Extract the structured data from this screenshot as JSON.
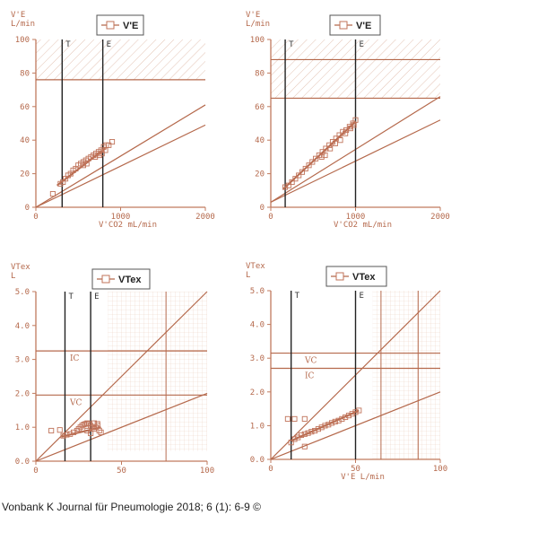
{
  "citation": "Vonbank K Journal für Pneumologie 2018; 6 (1): 6-9 ©",
  "colors": {
    "axis": "#c07a5e",
    "grid": "#e0b9a6",
    "line": "#b5694c",
    "marker": "#222222",
    "point": "#c0735a",
    "hatch": "#e3c3b4"
  },
  "chart_data": [
    {
      "type": "scatter",
      "panel": "top-left",
      "ylabel_lines": [
        "V'E",
        "L/min"
      ],
      "xlabel": "V'CO2  mL/min",
      "legend": "V'E",
      "xlim": [
        0,
        2000
      ],
      "ylim": [
        0,
        100
      ],
      "xticks": [
        0,
        1000,
        2000
      ],
      "xtick_labels": [
        "0",
        "1000",
        "2000"
      ],
      "yticks": [
        0,
        20,
        40,
        60,
        80,
        100
      ],
      "ytick_labels": [
        "0",
        "20",
        "40",
        "60",
        "80",
        "100"
      ],
      "markers": [
        {
          "label": "T",
          "x": 310
        },
        {
          "label": "E",
          "x": 790
        }
      ],
      "hlines": [
        {
          "y": 76,
          "label": ""
        }
      ],
      "hatched_band": [
        76,
        100
      ],
      "ref_lines": [
        {
          "x1": 0,
          "y1": 0,
          "x2": 2000,
          "y2": 61
        },
        {
          "x1": 0,
          "y1": 0,
          "x2": 2000,
          "y2": 49
        }
      ],
      "fit_line": [
        {
          "x": 250,
          "y": 13
        },
        {
          "x": 820,
          "y": 35
        }
      ],
      "series": [
        {
          "name": "V'E",
          "points": [
            [
              200,
              8
            ],
            [
              290,
              14
            ],
            [
              320,
              15
            ],
            [
              350,
              17
            ],
            [
              380,
              19
            ],
            [
              410,
              20
            ],
            [
              440,
              22
            ],
            [
              470,
              23
            ],
            [
              500,
              25
            ],
            [
              530,
              26
            ],
            [
              560,
              27
            ],
            [
              590,
              28
            ],
            [
              620,
              29
            ],
            [
              650,
              30
            ],
            [
              680,
              31
            ],
            [
              710,
              32
            ],
            [
              740,
              33
            ],
            [
              770,
              34
            ],
            [
              800,
              36
            ],
            [
              830,
              37
            ],
            [
              860,
              37
            ],
            [
              900,
              39
            ],
            [
              700,
              30
            ],
            [
              750,
              31
            ],
            [
              560,
              25
            ],
            [
              600,
              26
            ],
            [
              780,
              32
            ],
            [
              820,
              34
            ]
          ]
        }
      ]
    },
    {
      "type": "scatter",
      "panel": "top-right",
      "ylabel_lines": [
        "V'E",
        "L/min"
      ],
      "xlabel": "V'CO2  mL/min",
      "legend": "V'E",
      "xlim": [
        0,
        2000
      ],
      "ylim": [
        0,
        100
      ],
      "xticks": [
        0,
        1000,
        2000
      ],
      "xtick_labels": [
        "0",
        "1000",
        "2000"
      ],
      "yticks": [
        0,
        20,
        40,
        60,
        80,
        100
      ],
      "ytick_labels": [
        "0",
        "20",
        "40",
        "60",
        "80",
        "100"
      ],
      "markers": [
        {
          "label": "T",
          "x": 170
        },
        {
          "label": "E",
          "x": 1000
        }
      ],
      "hlines": [
        {
          "y": 88,
          "label": ""
        },
        {
          "y": 65,
          "label": ""
        }
      ],
      "hatched_band": [
        65,
        100
      ],
      "ref_lines": [
        {
          "x1": 0,
          "y1": 3,
          "x2": 2000,
          "y2": 66
        },
        {
          "x1": 0,
          "y1": 3,
          "x2": 2000,
          "y2": 52
        }
      ],
      "fit_line": [
        {
          "x": 150,
          "y": 11
        },
        {
          "x": 1000,
          "y": 51
        }
      ],
      "series": [
        {
          "name": "V'E",
          "points": [
            [
              170,
              12
            ],
            [
              210,
              13
            ],
            [
              250,
              15
            ],
            [
              290,
              17
            ],
            [
              330,
              19
            ],
            [
              370,
              21
            ],
            [
              410,
              23
            ],
            [
              450,
              25
            ],
            [
              490,
              27
            ],
            [
              530,
              29
            ],
            [
              570,
              31
            ],
            [
              610,
              33
            ],
            [
              650,
              35
            ],
            [
              690,
              37
            ],
            [
              730,
              39
            ],
            [
              770,
              41
            ],
            [
              810,
              43
            ],
            [
              850,
              45
            ],
            [
              890,
              46
            ],
            [
              930,
              48
            ],
            [
              970,
              50
            ],
            [
              1000,
              52
            ],
            [
              600,
              30
            ],
            [
              640,
              31
            ],
            [
              700,
              35
            ],
            [
              760,
              38
            ],
            [
              820,
              40
            ],
            [
              880,
              44
            ],
            [
              940,
              47
            ],
            [
              980,
              49
            ]
          ]
        }
      ]
    },
    {
      "type": "scatter",
      "panel": "bottom-left",
      "ylabel_lines": [
        "VTex",
        "L"
      ],
      "xlabel": "",
      "legend": "VTex",
      "xlim": [
        0,
        100
      ],
      "ylim": [
        0,
        5
      ],
      "xticks": [
        0,
        50,
        100
      ],
      "xtick_labels": [
        "0",
        "50",
        "100"
      ],
      "yticks": [
        0,
        1,
        2,
        3,
        4,
        5
      ],
      "ytick_labels": [
        "0.0",
        "1.0",
        "2.0",
        "3.0",
        "4.0",
        "5.0"
      ],
      "markers": [
        {
          "label": "T",
          "x": 17
        },
        {
          "label": "E",
          "x": 32
        }
      ],
      "hlines": [
        {
          "y": 3.25,
          "label": "IC"
        },
        {
          "y": 1.95,
          "label": "VC"
        }
      ],
      "vlines": [
        76
      ],
      "grid_region": {
        "x_from": 42,
        "y_from": 0.3
      },
      "ref_lines": [
        {
          "x1": 0,
          "y1": 0,
          "x2": 100,
          "y2": 5
        },
        {
          "x1": 0,
          "y1": 0,
          "x2": 100,
          "y2": 2
        }
      ],
      "fit_line": [
        {
          "x": 15,
          "y": 0.72
        },
        {
          "x": 38,
          "y": 1.0
        }
      ],
      "series": [
        {
          "name": "VTex",
          "points": [
            [
              9,
              0.9
            ],
            [
              14,
              0.92
            ],
            [
              16,
              0.75
            ],
            [
              18,
              0.78
            ],
            [
              20,
              0.8
            ],
            [
              22,
              0.85
            ],
            [
              24,
              0.9
            ],
            [
              25,
              0.95
            ],
            [
              26,
              1.0
            ],
            [
              27,
              1.05
            ],
            [
              28,
              1.08
            ],
            [
              29,
              1.1
            ],
            [
              30,
              1.12
            ],
            [
              31,
              1.1
            ],
            [
              32,
              1.05
            ],
            [
              33,
              1.0
            ],
            [
              34,
              0.95
            ],
            [
              35,
              1.0
            ],
            [
              36,
              1.05
            ],
            [
              37,
              0.9
            ],
            [
              38,
              0.85
            ],
            [
              30,
              0.9
            ],
            [
              32,
              0.82
            ],
            [
              34,
              1.12
            ],
            [
              36,
              1.1
            ]
          ]
        }
      ]
    },
    {
      "type": "scatter",
      "panel": "bottom-right",
      "ylabel_lines": [
        "VTex",
        "L"
      ],
      "xlabel": "V'E  L/min",
      "legend": "VTex",
      "xlim": [
        0,
        100
      ],
      "ylim": [
        0,
        5
      ],
      "xticks": [
        0,
        50,
        100
      ],
      "xtick_labels": [
        "0",
        "50",
        "100"
      ],
      "yticks": [
        0,
        1,
        2,
        3,
        4,
        5
      ],
      "ytick_labels": [
        "0.0",
        "1.0",
        "2.0",
        "3.0",
        "4.0",
        "5.0"
      ],
      "markers": [
        {
          "label": "T",
          "x": 12
        },
        {
          "label": "E",
          "x": 50
        }
      ],
      "hlines": [
        {
          "y": 3.15,
          "label": "VC"
        },
        {
          "y": 2.7,
          "label": "IC"
        }
      ],
      "vlines": [
        65,
        87
      ],
      "grid_region": {
        "x_from": 60,
        "y_from": 0
      },
      "ref_lines": [
        {
          "x1": 0,
          "y1": 0,
          "x2": 100,
          "y2": 5
        },
        {
          "x1": 0,
          "y1": 0,
          "x2": 100,
          "y2": 2
        }
      ],
      "fit_line": [
        {
          "x": 12,
          "y": 0.55
        },
        {
          "x": 52,
          "y": 1.45
        }
      ],
      "series": [
        {
          "name": "VTex",
          "points": [
            [
              10,
              1.2
            ],
            [
              14,
              1.2
            ],
            [
              20,
              1.2
            ],
            [
              20,
              0.38
            ],
            [
              12,
              0.5
            ],
            [
              14,
              0.6
            ],
            [
              16,
              0.65
            ],
            [
              18,
              0.72
            ],
            [
              20,
              0.75
            ],
            [
              22,
              0.78
            ],
            [
              24,
              0.82
            ],
            [
              26,
              0.85
            ],
            [
              28,
              0.9
            ],
            [
              30,
              0.95
            ],
            [
              32,
              1.0
            ],
            [
              34,
              1.03
            ],
            [
              36,
              1.08
            ],
            [
              38,
              1.12
            ],
            [
              40,
              1.15
            ],
            [
              42,
              1.2
            ],
            [
              44,
              1.25
            ],
            [
              46,
              1.3
            ],
            [
              48,
              1.35
            ],
            [
              50,
              1.4
            ],
            [
              52,
              1.45
            ]
          ]
        }
      ]
    }
  ]
}
